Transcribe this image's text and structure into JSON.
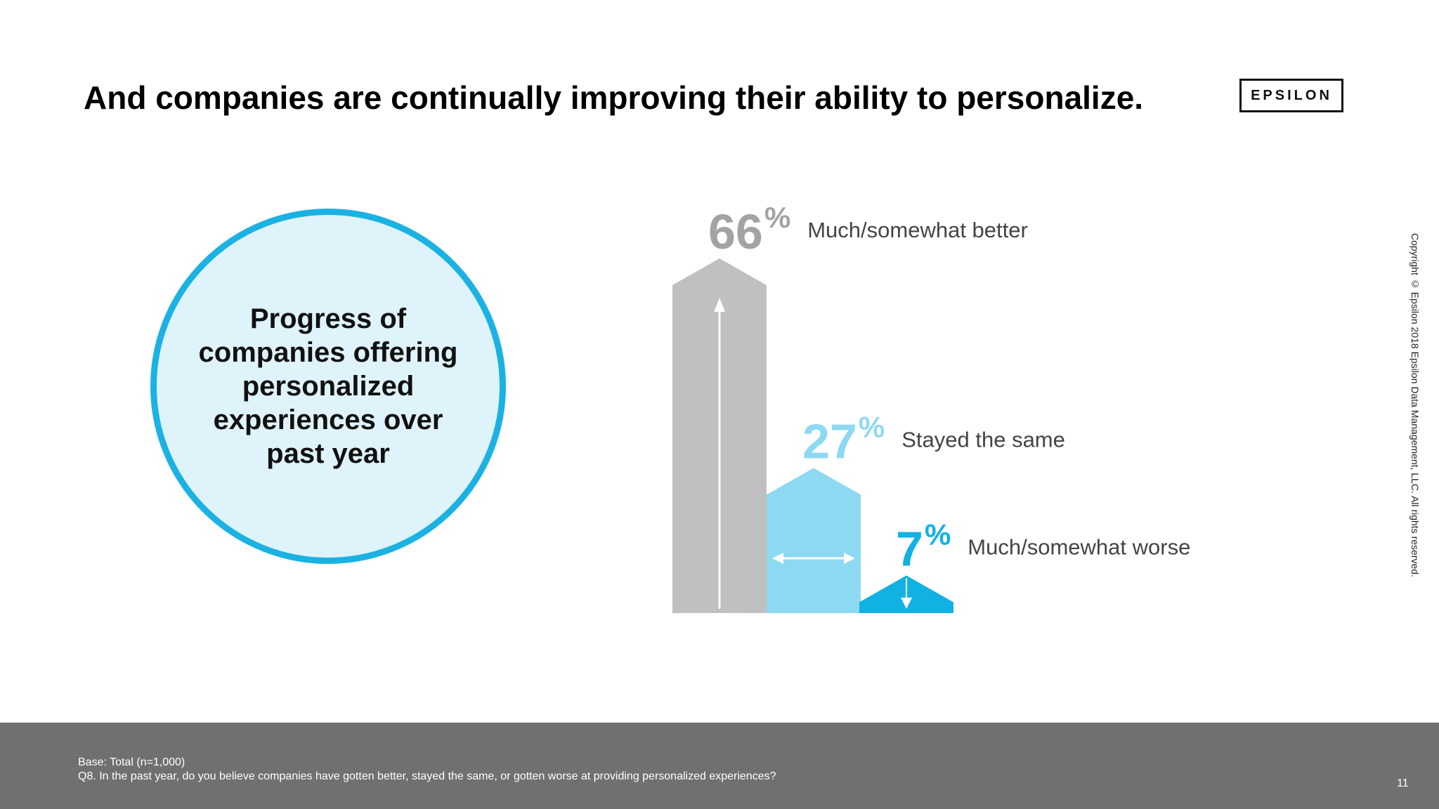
{
  "title": "And companies are continually improving their ability to personalize.",
  "logo": "EPSILON",
  "circle_text": "Progress of companies offering personalized experiences over past year",
  "copyright": "Copyright © Epsilon 2018 Epsilon Data Management, LLC. All rights reserved.",
  "footer": {
    "base": "Base: Total (n=1,000)",
    "question": "Q8. In the past year, do you believe companies have gotten better, stayed the same, or gotten worse at providing personalized experiences?",
    "page_number": "11"
  },
  "colors": {
    "better": "#c0bfc2",
    "same": "#8dd9f2",
    "worse": "#12b1e4",
    "better_label": "#a3a3a3",
    "same_label": "#8dd9f2",
    "worse_label": "#12b1e4",
    "text": "#444444"
  },
  "chart_data": {
    "type": "bar",
    "categories": [
      "Much/somewhat better",
      "Stayed the same",
      "Much/somewhat worse"
    ],
    "values": [
      66,
      27,
      7
    ],
    "value_labels": [
      "66",
      "27",
      "7"
    ],
    "unit": "%",
    "ylim": [
      0,
      66
    ],
    "arrows": [
      "up",
      "left-right",
      "down"
    ]
  }
}
